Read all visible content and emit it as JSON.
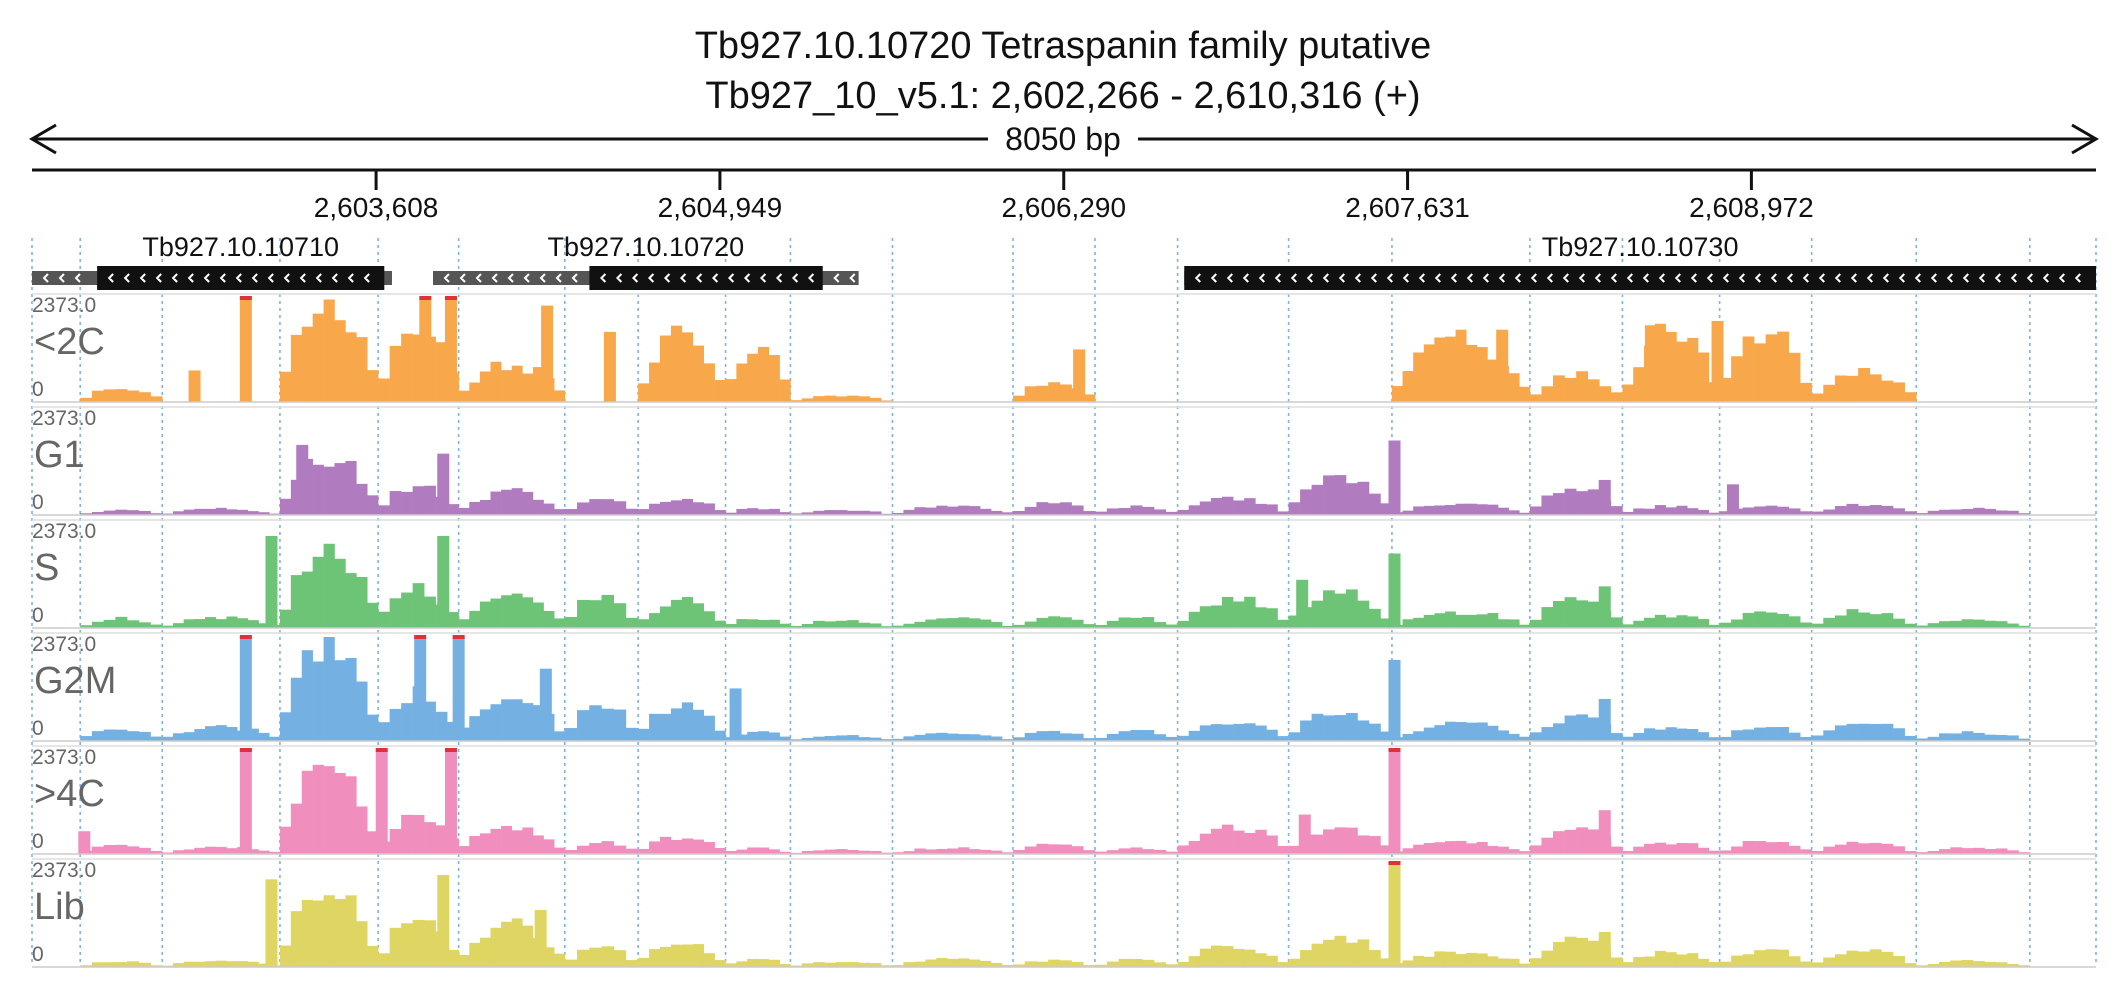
{
  "chart_data": {
    "type": "area",
    "title": "Tb927.10.10720  Tetraspanin family  putative",
    "subtitle": "Tb927_10_v5.1: 2,602,266 - 2,610,316 (+)",
    "span_label": "8050 bp",
    "region": {
      "chrom": "Tb927_10_v5.1",
      "start": 2602266,
      "end": 2610316,
      "strand": "+"
    },
    "ticks": [
      {
        "pos": 2603608,
        "label": "2,603,608"
      },
      {
        "pos": 2604949,
        "label": "2,604,949"
      },
      {
        "pos": 2606290,
        "label": "2,606,290"
      },
      {
        "pos": 2607631,
        "label": "2,607,631"
      },
      {
        "pos": 2608972,
        "label": "2,608,972"
      }
    ],
    "genes": [
      {
        "name": "Tb927.10.10710",
        "start": 2602266,
        "end": 2603670,
        "cds_start": 2602520,
        "cds_end": 2603640,
        "strand": "-"
      },
      {
        "name": "Tb927.10.10720",
        "start": 2603830,
        "end": 2604810,
        "cds_start": 2604440,
        "cds_end": 2605350,
        "utr_end": 2605490,
        "strand": "-"
      },
      {
        "name": "Tb927.10.10730",
        "start": 2606760,
        "end": 2610316,
        "cds_start": 2606760,
        "cds_end": 2610316,
        "strand": "-"
      }
    ],
    "y_max": 2373.0,
    "y_max_label": "2373.0",
    "y_min_label": "0",
    "segments": [
      {
        "start": 2602454,
        "end": 2602774
      },
      {
        "start": 2602774,
        "end": 2603233
      },
      {
        "start": 2603233,
        "end": 2603616
      },
      {
        "start": 2603616,
        "end": 2603930
      },
      {
        "start": 2603930,
        "end": 2604344
      },
      {
        "start": 2604344,
        "end": 2604630
      },
      {
        "start": 2604630,
        "end": 2604971
      },
      {
        "start": 2604971,
        "end": 2605224
      },
      {
        "start": 2605224,
        "end": 2605622
      },
      {
        "start": 2605622,
        "end": 2606092
      },
      {
        "start": 2606092,
        "end": 2606412
      },
      {
        "start": 2606412,
        "end": 2606734
      },
      {
        "start": 2606734,
        "end": 2607167
      },
      {
        "start": 2607167,
        "end": 2607570
      },
      {
        "start": 2607570,
        "end": 2608108
      },
      {
        "start": 2608108,
        "end": 2608469
      },
      {
        "start": 2608469,
        "end": 2608848
      },
      {
        "start": 2608848,
        "end": 2609207
      },
      {
        "start": 2609207,
        "end": 2609615
      },
      {
        "start": 2609615,
        "end": 2610058
      }
    ],
    "series": [
      {
        "name": "<2C",
        "color": "#f8a84a",
        "segment_heights": [
          350,
          0,
          2373,
          1800,
          900,
          0,
          1700,
          1280,
          150,
          0,
          500,
          0,
          0,
          0,
          1500,
          650,
          1650,
          1700,
          750,
          0
        ],
        "spikes": [
          {
            "pos": 2602900,
            "value": 720
          },
          {
            "pos": 2603100,
            "value": 2373
          },
          {
            "pos": 2603800,
            "value": 2373
          },
          {
            "pos": 2603900,
            "value": 2373
          },
          {
            "pos": 2604275,
            "value": 2200
          },
          {
            "pos": 2604520,
            "value": 1600
          },
          {
            "pos": 2606350,
            "value": 1200
          },
          {
            "pos": 2608000,
            "value": 1650
          },
          {
            "pos": 2608580,
            "value": 1750
          },
          {
            "pos": 2608840,
            "value": 1850
          }
        ]
      },
      {
        "name": "G1",
        "color": "#b07cbf",
        "segment_heights": [
          120,
          150,
          1400,
          700,
          550,
          420,
          400,
          160,
          120,
          220,
          300,
          200,
          380,
          900,
          260,
          600,
          220,
          250,
          260,
          150
        ],
        "spikes": [
          {
            "pos": 2603320,
            "value": 1600
          },
          {
            "pos": 2603870,
            "value": 1400
          },
          {
            "pos": 2607580,
            "value": 1700
          },
          {
            "pos": 2608400,
            "value": 800
          },
          {
            "pos": 2608900,
            "value": 700
          }
        ]
      },
      {
        "name": "S",
        "color": "#6dc477",
        "segment_heights": [
          230,
          240,
          1800,
          950,
          750,
          750,
          640,
          240,
          180,
          230,
          240,
          240,
          700,
          900,
          370,
          680,
          300,
          360,
          400,
          200
        ],
        "spikes": [
          {
            "pos": 2603200,
            "value": 2100
          },
          {
            "pos": 2603870,
            "value": 2100
          },
          {
            "pos": 2607220,
            "value": 1100
          },
          {
            "pos": 2607580,
            "value": 1700
          },
          {
            "pos": 2608400,
            "value": 950
          }
        ]
      },
      {
        "name": "G2M",
        "color": "#74b1e2",
        "segment_heights": [
          300,
          340,
          2373,
          1180,
          1020,
          960,
          850,
          230,
          130,
          180,
          230,
          240,
          420,
          700,
          420,
          560,
          330,
          330,
          420,
          200
        ],
        "spikes": [
          {
            "pos": 2603100,
            "value": 2373
          },
          {
            "pos": 2603780,
            "value": 2373
          },
          {
            "pos": 2603930,
            "value": 2373
          },
          {
            "pos": 2604270,
            "value": 1650
          },
          {
            "pos": 2605010,
            "value": 1200
          },
          {
            "pos": 2607580,
            "value": 1850
          },
          {
            "pos": 2608400,
            "value": 960
          }
        ]
      },
      {
        "name": ">4C",
        "color": "#f08fbd",
        "segment_heights": [
          220,
          170,
          2100,
          900,
          640,
          280,
          400,
          160,
          100,
          150,
          260,
          140,
          650,
          650,
          280,
          640,
          280,
          320,
          260,
          150
        ],
        "spikes": [
          {
            "pos": 2602470,
            "value": 520
          },
          {
            "pos": 2603100,
            "value": 2373
          },
          {
            "pos": 2603630,
            "value": 2373
          },
          {
            "pos": 2603900,
            "value": 2373
          },
          {
            "pos": 2607230,
            "value": 900
          },
          {
            "pos": 2607580,
            "value": 2373
          },
          {
            "pos": 2608400,
            "value": 1000
          }
        ]
      },
      {
        "name": "Lib",
        "color": "#ded562",
        "segment_heights": [
          140,
          150,
          1850,
          1100,
          1000,
          520,
          600,
          200,
          130,
          200,
          160,
          180,
          500,
          720,
          360,
          650,
          360,
          400,
          380,
          150
        ],
        "spikes": [
          {
            "pos": 2603200,
            "value": 2000
          },
          {
            "pos": 2603870,
            "value": 2100
          },
          {
            "pos": 2604250,
            "value": 1300
          },
          {
            "pos": 2607580,
            "value": 2373
          },
          {
            "pos": 2608400,
            "value": 800
          }
        ]
      }
    ]
  }
}
